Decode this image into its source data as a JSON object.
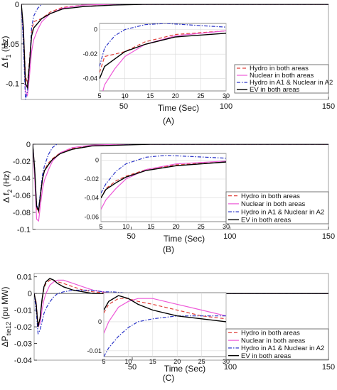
{
  "figure": {
    "panels": [
      "(A)",
      "(B)",
      "(C)"
    ]
  },
  "colors": {
    "hydro": "#e0403a",
    "nuclear": "#ee5ad8",
    "mixed": "#2b35c8",
    "ev": "#000000"
  },
  "chart_data": [
    {
      "type": "line",
      "panel": "(A)",
      "xlabel": "Time (Sec)",
      "ylabel": "Δ f1 (Hz)",
      "ylabel_main": "Δ f",
      "ylabel_sub": "1",
      "ylabel_unit": " (Hz)",
      "xlim": [
        0,
        150
      ],
      "ylim": [
        -0.12,
        0.0
      ],
      "xticks": [
        50,
        100,
        150
      ],
      "yticks": [
        0,
        -0.05,
        -0.1
      ],
      "ytick_labels": [
        "0",
        "-0.05",
        "-0.1"
      ],
      "legend": [
        "Hydro in both areas",
        "Nuclear in both areas",
        "Hydro in A1 & Nuclear in A2",
        "EV in both areas"
      ],
      "series": [
        {
          "name": "Hydro in both areas",
          "x": [
            0,
            1,
            2,
            3,
            4,
            5,
            6,
            8,
            10,
            14,
            20,
            30,
            45,
            60,
            100,
            150
          ],
          "y": [
            0,
            -0.03,
            -0.09,
            -0.1,
            -0.07,
            -0.035,
            -0.022,
            -0.02,
            -0.018,
            -0.01,
            -0.004,
            -0.001,
            0,
            0,
            0,
            0
          ]
        },
        {
          "name": "Nuclear in both areas",
          "x": [
            0,
            1,
            2,
            3,
            4,
            5,
            6,
            8,
            10,
            14,
            20,
            30,
            45,
            60,
            100,
            150
          ],
          "y": [
            0,
            -0.04,
            -0.11,
            -0.115,
            -0.09,
            -0.06,
            -0.045,
            -0.032,
            -0.022,
            -0.012,
            -0.005,
            -0.001,
            0,
            0,
            0,
            0
          ]
        },
        {
          "name": "Hydro in A1 & Nuclear in A2",
          "x": [
            0,
            1,
            2,
            3,
            4,
            5,
            6,
            8,
            10,
            14,
            18,
            22,
            26,
            30,
            40,
            50,
            100,
            150
          ],
          "y": [
            0,
            -0.05,
            -0.12,
            -0.11,
            -0.075,
            -0.03,
            -0.015,
            -0.005,
            0.0,
            0.004,
            0.005,
            0.004,
            0.003,
            0.002,
            0.001,
            0,
            0,
            0
          ]
        },
        {
          "name": "EV in both areas",
          "x": [
            0,
            1,
            2,
            3,
            4,
            5,
            6,
            8,
            10,
            14,
            20,
            30,
            45,
            60,
            100,
            150
          ],
          "y": [
            0,
            -0.03,
            -0.1,
            -0.105,
            -0.075,
            -0.04,
            -0.03,
            -0.024,
            -0.018,
            -0.012,
            -0.006,
            -0.003,
            -0.001,
            0,
            0,
            0
          ]
        }
      ],
      "inset": {
        "xlim": [
          5,
          30
        ],
        "ylim": [
          -0.05,
          0.005
        ],
        "xticks": [
          5,
          10,
          15,
          20,
          25,
          30
        ],
        "yticks": [
          0,
          -0.02,
          -0.04
        ],
        "ytick_labels": [
          "0",
          "-0.02",
          "-0.04"
        ]
      }
    },
    {
      "type": "line",
      "panel": "(B)",
      "xlabel": "Time (Sec)",
      "ylabel": "Δ f2 (Hz)",
      "ylabel_main": "Δ f",
      "ylabel_sub": "2",
      "ylabel_unit": " (Hz)",
      "xlim": [
        0,
        150
      ],
      "ylim": [
        -0.1,
        0.0
      ],
      "xticks": [
        50,
        100,
        150
      ],
      "yticks": [
        0,
        -0.02,
        -0.04,
        -0.06,
        -0.08,
        -0.1
      ],
      "ytick_labels": [
        "0",
        "-0.02",
        "-0.04",
        "-0.06",
        "-0.08",
        "-0.1"
      ],
      "legend": [
        "Hydro in both areas",
        "Nuclear in both areas",
        "Hydro in A1 & Nuclear in A2",
        "EV in both areas"
      ],
      "series": [
        {
          "name": "Hydro in both areas",
          "x": [
            0,
            1,
            2,
            3,
            4,
            5,
            6,
            8,
            10,
            14,
            20,
            30,
            45,
            60,
            100,
            150
          ],
          "y": [
            0,
            -0.03,
            -0.075,
            -0.08,
            -0.06,
            -0.04,
            -0.03,
            -0.022,
            -0.017,
            -0.01,
            -0.005,
            -0.002,
            0,
            0,
            0,
            0
          ]
        },
        {
          "name": "Nuclear in both areas",
          "x": [
            0,
            1,
            2,
            3,
            4,
            5,
            6,
            8,
            10,
            14,
            20,
            30,
            45,
            60,
            100,
            150
          ],
          "y": [
            0,
            -0.04,
            -0.088,
            -0.09,
            -0.07,
            -0.052,
            -0.042,
            -0.03,
            -0.02,
            -0.01,
            -0.004,
            -0.001,
            0,
            0,
            0,
            0
          ]
        },
        {
          "name": "Hydro in A1 & Nuclear in A2",
          "x": [
            0,
            1,
            2,
            3,
            4,
            5,
            6,
            8,
            10,
            14,
            18,
            22,
            26,
            30,
            40,
            50,
            100,
            150
          ],
          "y": [
            0,
            -0.03,
            -0.072,
            -0.075,
            -0.055,
            -0.035,
            -0.025,
            -0.012,
            -0.004,
            0.003,
            0.005,
            0.004,
            0.003,
            0.002,
            0.001,
            0,
            0,
            0
          ]
        },
        {
          "name": "EV in both areas",
          "x": [
            0,
            1,
            2,
            3,
            4,
            5,
            6,
            8,
            10,
            14,
            20,
            30,
            45,
            60,
            100,
            150
          ],
          "y": [
            0,
            -0.03,
            -0.073,
            -0.078,
            -0.058,
            -0.04,
            -0.031,
            -0.024,
            -0.018,
            -0.011,
            -0.006,
            -0.002,
            -0.001,
            0,
            0,
            0
          ]
        }
      ],
      "inset": {
        "xlim": [
          5,
          30
        ],
        "ylim": [
          -0.065,
          0.007
        ],
        "xticks": [
          5,
          10,
          15,
          20,
          25,
          30
        ],
        "yticks": [
          0,
          -0.02,
          -0.04,
          -0.06
        ],
        "ytick_labels": [
          "0",
          "-0.02",
          "-0.04",
          "-0.06"
        ]
      }
    },
    {
      "type": "line",
      "panel": "(C)",
      "xlabel": "Time (Sec)",
      "ylabel": "Δ Ptie12 (pu MW)",
      "ylabel_main": "ΔP",
      "ylabel_sub": "tie12",
      "ylabel_unit": " (pu MW)",
      "xlim": [
        0,
        150
      ],
      "ylim": [
        -0.04,
        0.012
      ],
      "xticks": [
        50,
        100,
        150
      ],
      "yticks": [
        0.01,
        0,
        -0.01,
        -0.02,
        -0.03,
        -0.04
      ],
      "ytick_labels": [
        "0.01",
        "0",
        "-0.01",
        "-0.02",
        "-0.03",
        "-0.04"
      ],
      "legend": [
        "Hydro in both areas",
        "Nuclear in both areas",
        "Hydro in A1 & Nuclear in A2",
        "EV in both areas"
      ],
      "series": [
        {
          "name": "Hydro in both areas",
          "x": [
            0,
            1,
            2,
            3,
            4,
            5,
            6,
            8,
            10,
            12,
            15,
            20,
            25,
            30,
            40,
            50,
            100,
            150
          ],
          "y": [
            0,
            -0.005,
            -0.018,
            -0.015,
            -0.005,
            0.003,
            0.006,
            0.008,
            0.008,
            0.007,
            0.006,
            0.004,
            0.002,
            0.001,
            0,
            0,
            0,
            0
          ]
        },
        {
          "name": "Nuclear in both areas",
          "x": [
            0,
            1,
            2,
            3,
            4,
            5,
            6,
            8,
            10,
            12,
            15,
            20,
            25,
            30,
            40,
            50,
            100,
            150
          ],
          "y": [
            0,
            -0.006,
            -0.02,
            -0.018,
            -0.01,
            -0.004,
            0,
            0.005,
            0.007,
            0.008,
            0.008,
            0.006,
            0.004,
            0.002,
            0,
            0,
            0,
            0
          ]
        },
        {
          "name": "Hydro in A1 & Nuclear in A2",
          "x": [
            0,
            1,
            2,
            3,
            4,
            5,
            6,
            8,
            10,
            12,
            15,
            20,
            25,
            30,
            35,
            40,
            50,
            100,
            150
          ],
          "y": [
            0,
            -0.01,
            -0.024,
            -0.022,
            -0.017,
            -0.012,
            -0.009,
            -0.005,
            -0.002,
            0,
            0.001,
            0.002,
            0.002,
            0.002,
            0.001,
            0.001,
            0,
            0,
            0
          ]
        },
        {
          "name": "EV in both areas",
          "x": [
            0,
            1,
            2,
            3,
            4,
            5,
            6,
            8,
            10,
            12,
            15,
            20,
            25,
            30,
            40,
            50,
            100,
            150
          ],
          "y": [
            0,
            -0.006,
            -0.02,
            -0.015,
            -0.004,
            0.004,
            0.007,
            0.009,
            0.008,
            0.006,
            0.004,
            0.002,
            0.001,
            0,
            0,
            0,
            0,
            0
          ]
        }
      ],
      "inset": {
        "xlim": [
          5,
          30
        ],
        "ylim": [
          -0.012,
          0.01
        ],
        "xticks": [
          5,
          10,
          15,
          20,
          25,
          30
        ],
        "yticks": [
          0,
          -0.01
        ],
        "ytick_labels": [
          "0",
          "-0.01"
        ]
      }
    }
  ]
}
